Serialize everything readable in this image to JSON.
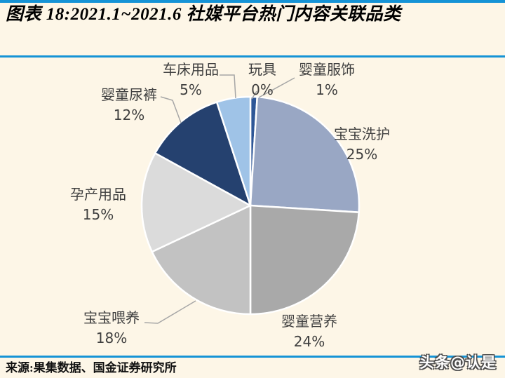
{
  "page": {
    "title": "图表 18:2021.1~2021.6 社媒平台热门内容关联品类",
    "source": "来源:果集数据、国金证券研究所",
    "watermark": "头条@认是"
  },
  "colors": {
    "background": "#FDF6E7",
    "rule_blue": "#1593D6",
    "label_text": "#3F3F3F",
    "leader_line": "#A6A6A6",
    "slice_border": "#FFFFFF"
  },
  "chart_data": {
    "type": "pie",
    "title": "图表 18:2021.1~2021.6 社媒平台热门内容关联品类",
    "source_note": "来源:果集数据、国金证券研究所",
    "unit": "%",
    "start_angle_deg": 0,
    "direction": "clockwise",
    "legend_position": "none",
    "label_format": "{label} {value}%",
    "slices": [
      {
        "id": "yingtong-fushi",
        "label": "婴童服饰",
        "value": 1,
        "color": "#2E5797"
      },
      {
        "id": "baobao-xihu",
        "label": "宝宝洗护",
        "value": 25,
        "color": "#99A7C4"
      },
      {
        "id": "yingtong-yingyang",
        "label": "婴童营养",
        "value": 24,
        "color": "#A9A9A9"
      },
      {
        "id": "baobao-weiyang",
        "label": "宝宝喂养",
        "value": 18,
        "color": "#C2C2C2"
      },
      {
        "id": "yunchan-yongpin",
        "label": "孕产用品",
        "value": 15,
        "color": "#DBDBDB"
      },
      {
        "id": "yingtong-niaoku",
        "label": "婴童尿裤",
        "value": 12,
        "color": "#25416F"
      },
      {
        "id": "chechuang-yongpin",
        "label": "车床用品",
        "value": 5,
        "color": "#9FC3E7"
      },
      {
        "id": "wanju",
        "label": "玩具",
        "value": 0,
        "color": "#4472C4"
      }
    ]
  }
}
